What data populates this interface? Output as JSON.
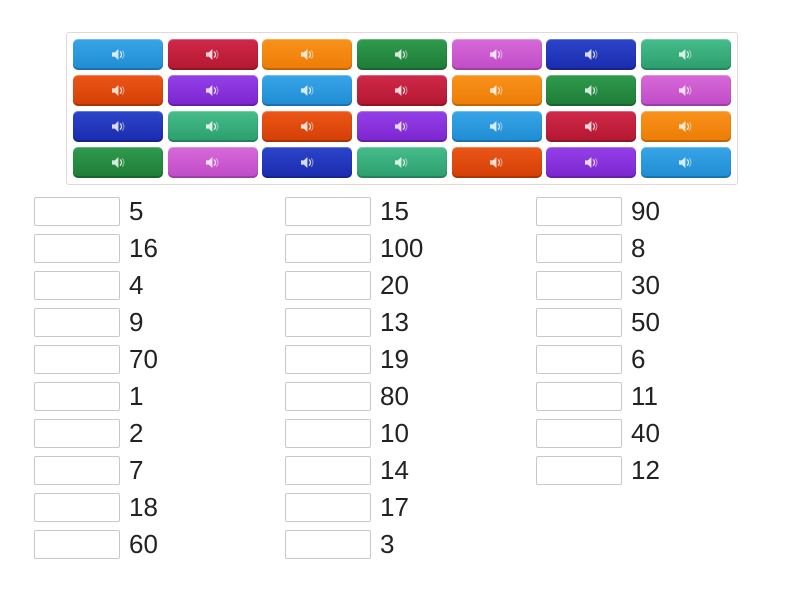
{
  "sound_board": {
    "rows": 4,
    "cols": 7,
    "icon": "speaker-icon",
    "icon_color": "#ffffff",
    "palette": [
      {
        "name": "light-blue",
        "top": "#38a5e8",
        "bottom": "#1f8cd3"
      },
      {
        "name": "crimson",
        "top": "#d0294a",
        "bottom": "#b3172f"
      },
      {
        "name": "orange",
        "top": "#f9921c",
        "bottom": "#ec7c05"
      },
      {
        "name": "forest-green",
        "top": "#2f9b4d",
        "bottom": "#1e7c37"
      },
      {
        "name": "orchid",
        "top": "#d669d8",
        "bottom": "#c14bc8"
      },
      {
        "name": "royal-blue",
        "top": "#2c45cc",
        "bottom": "#1a2bac"
      },
      {
        "name": "sea-green",
        "top": "#45bd8a",
        "bottom": "#2c9e6e"
      },
      {
        "name": "orange-red",
        "top": "#ec5617",
        "bottom": "#d23e05"
      },
      {
        "name": "purple",
        "top": "#9440e8",
        "bottom": "#7b25ce"
      }
    ],
    "buttons": [
      0,
      1,
      2,
      3,
      4,
      5,
      6,
      7,
      8,
      0,
      1,
      2,
      3,
      4,
      5,
      6,
      7,
      8,
      0,
      1,
      2,
      3,
      4,
      5,
      6,
      7,
      8,
      0
    ]
  },
  "match_list": {
    "columns": [
      {
        "items": [
          "5",
          "16",
          "4",
          "9",
          "70",
          "1",
          "2",
          "7",
          "18",
          "60"
        ]
      },
      {
        "items": [
          "15",
          "100",
          "20",
          "13",
          "19",
          "80",
          "10",
          "14",
          "17",
          "3"
        ]
      },
      {
        "items": [
          "90",
          "8",
          "30",
          "50",
          "6",
          "11",
          "40",
          "12"
        ]
      }
    ]
  }
}
